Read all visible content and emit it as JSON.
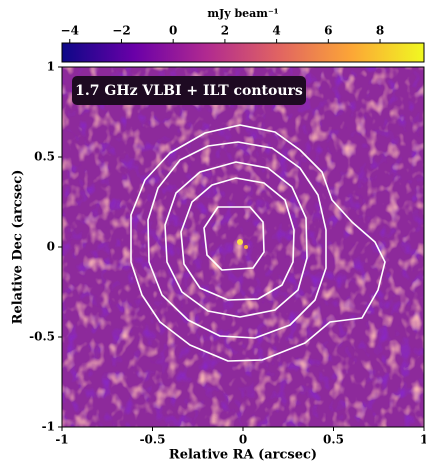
{
  "chart_data": {
    "type": "image",
    "annotation": "1.7 GHz VLBI + ILT contours",
    "xlabel": "Relative RA (arcsec)",
    "ylabel": "Relative Dec (arcsec)",
    "xlim": [
      -1,
      1
    ],
    "xticks": [
      -1,
      -0.5,
      0,
      0.5,
      1
    ],
    "ylim": [
      -1,
      1
    ],
    "yticks": [
      -1,
      -0.5,
      0,
      0.5,
      1
    ],
    "colorbar": {
      "label": "mJy beam⁻¹",
      "clim": [
        -4.3,
        9.7
      ],
      "ticks": [
        {
          "value": -4,
          "label": "−4"
        },
        {
          "value": -2,
          "label": "−2"
        },
        0,
        2,
        4,
        6,
        8
      ],
      "colormap": [
        "#0d0887",
        "#6a00a8",
        "#b12a90",
        "#e16462",
        "#fca636",
        "#f0f921"
      ]
    }
  }
}
